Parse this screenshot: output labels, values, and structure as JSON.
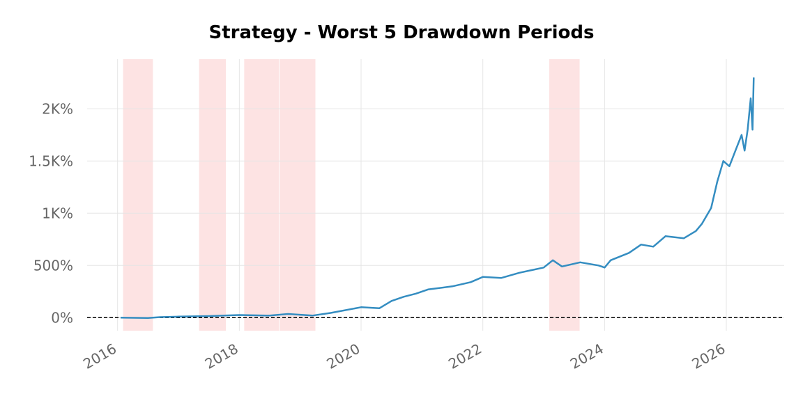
{
  "chart_data": {
    "type": "line",
    "title": "Strategy - Worst 5 Drawdown Periods",
    "xlim": [
      2015.5,
      2026.95
    ],
    "xticks": [
      2016,
      2018,
      2020,
      2022,
      2024,
      2026
    ],
    "ylim": [
      -125,
      2475
    ],
    "yticks": [
      {
        "value": 0,
        "label": "0%"
      },
      {
        "value": 500,
        "label": "500%"
      },
      {
        "value": 1000,
        "label": "1K%"
      },
      {
        "value": 1500,
        "label": "1.5K%"
      },
      {
        "value": 2000,
        "label": "2K%"
      }
    ],
    "grid": true,
    "drawdown_color": "#fde3e3",
    "drawdowns": [
      [
        2016.09,
        2016.58
      ],
      [
        2017.34,
        2017.78
      ],
      [
        2018.08,
        2018.65
      ],
      [
        2018.66,
        2019.25
      ],
      [
        2023.09,
        2023.59
      ]
    ],
    "series": [
      {
        "name": "Strategy",
        "color": "#348dc1",
        "x": [
          2016.05,
          2016.5,
          2016.7,
          2017.0,
          2017.5,
          2018.0,
          2018.5,
          2018.8,
          2019.2,
          2019.5,
          2020.0,
          2020.3,
          2020.5,
          2020.7,
          2020.9,
          2021.1,
          2021.5,
          2021.8,
          2022.0,
          2022.3,
          2022.6,
          2023.0,
          2023.15,
          2023.3,
          2023.6,
          2023.9,
          2024.0,
          2024.1,
          2024.4,
          2024.6,
          2024.8,
          2025.0,
          2025.3,
          2025.5,
          2025.6,
          2025.75,
          2025.85,
          2025.95,
          2026.05,
          2026.15,
          2026.25,
          2026.3,
          2026.35,
          2026.4,
          2026.43,
          2026.45
        ],
        "values": [
          0,
          -3,
          5,
          10,
          15,
          25,
          20,
          35,
          20,
          45,
          100,
          90,
          160,
          200,
          230,
          270,
          300,
          340,
          390,
          380,
          430,
          480,
          550,
          490,
          530,
          500,
          480,
          550,
          620,
          700,
          680,
          780,
          760,
          830,
          900,
          1050,
          1300,
          1500,
          1450,
          1600,
          1750,
          1600,
          1800,
          2100,
          1800,
          2300
        ]
      }
    ]
  }
}
